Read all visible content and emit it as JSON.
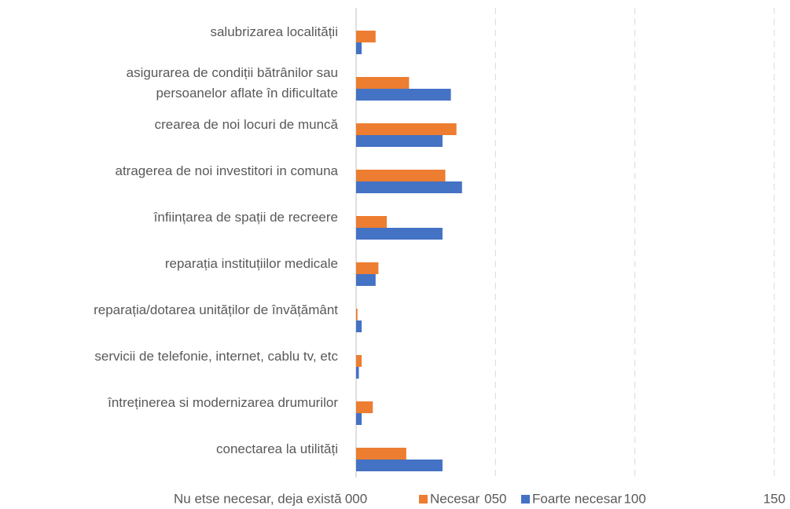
{
  "chart_data": {
    "type": "bar",
    "orientation": "horizontal",
    "categories": [
      "salubrizarea localității",
      [
        "asigurarea de condiții bătrânilor sau",
        "persoanelor aflate în dificultate"
      ],
      "crearea de noi locuri de muncă",
      "atragerea de noi investitori in comuna",
      "înființarea de spații de recreere",
      "reparația instituțiilor medicale",
      "reparația/dotarea unităților de învățământ",
      "servicii de telefonie, internet, cablu tv, etc",
      "întreținerea si modernizarea drumurilor",
      "conectarea la utilități"
    ],
    "series": [
      {
        "name": "Nu etse necesar, deja există",
        "color": "#ffffff",
        "values": [
          0,
          0,
          0,
          0,
          0,
          0,
          0,
          0,
          0,
          0
        ]
      },
      {
        "name": "Necesar",
        "color": "#ed7d31",
        "values": [
          7,
          19,
          36,
          32,
          11,
          8,
          0.5,
          2,
          6,
          18
        ]
      },
      {
        "name": "Foarte necesar",
        "color": "#4472c4",
        "values": [
          2,
          34,
          31,
          38,
          31,
          7,
          2,
          1,
          2,
          31
        ]
      }
    ],
    "xlim": [
      0,
      150
    ],
    "xticks": [
      {
        "value": 0,
        "label": "000"
      },
      {
        "value": 50,
        "label": "050"
      },
      100,
      150
    ],
    "grid": true,
    "legend": "bottom"
  }
}
